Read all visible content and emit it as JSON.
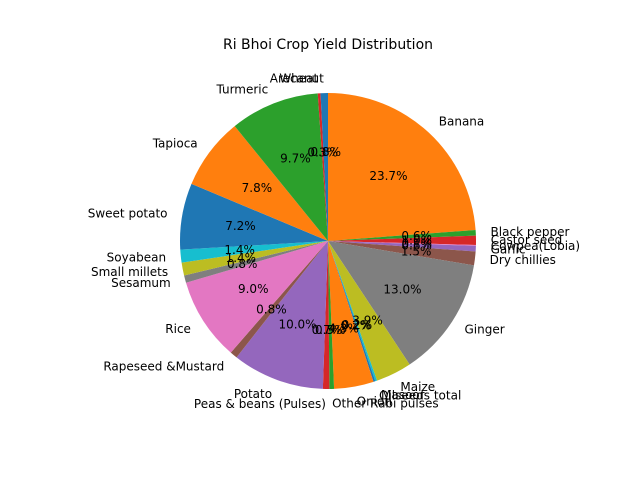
{
  "chart_data": {
    "type": "pie",
    "title": "Ri Bhoi Crop Yield Distribution",
    "start_angle_deg": 90,
    "direction": "clockwise",
    "legend": "none",
    "slices": [
      {
        "label": "Arecanut",
        "value": 0.8,
        "pct_label": "0.8%",
        "color": "#1f77b4"
      },
      {
        "label": "Wheat",
        "value": 0.3,
        "pct_label": "0.3%",
        "color": "#d62728"
      },
      {
        "label": "Turmeric",
        "value": 9.7,
        "pct_label": "9.7%",
        "color": "#2ca02c"
      },
      {
        "label": "Tapioca",
        "value": 7.8,
        "pct_label": "7.8%",
        "color": "#ff7f0e"
      },
      {
        "label": "Sweet potato",
        "value": 7.2,
        "pct_label": "7.2%",
        "color": "#1f77b4"
      },
      {
        "label": "Soyabean",
        "value": 1.4,
        "pct_label": "1.4%",
        "color": "#17becf"
      },
      {
        "label": "Small millets",
        "value": 1.4,
        "pct_label": "1.4%",
        "color": "#bcbd22"
      },
      {
        "label": "Sesamum",
        "value": 0.8,
        "pct_label": "0.8%",
        "color": "#7f7f7f"
      },
      {
        "label": "Rice",
        "value": 9.0,
        "pct_label": "9.0%",
        "color": "#e377c2"
      },
      {
        "label": "Rapeseed &Mustard",
        "value": 0.8,
        "pct_label": "0.8%",
        "color": "#8c564b"
      },
      {
        "label": "Potato",
        "value": 10.0,
        "pct_label": "10.0%",
        "color": "#9467bd"
      },
      {
        "label": "Peas & beans (Pulses)",
        "value": 0.7,
        "pct_label": "0.7%",
        "color": "#d62728"
      },
      {
        "label": "Other Rabi pulses",
        "value": 0.5,
        "pct_label": "0.5%",
        "color": "#2ca02c"
      },
      {
        "label": "Onion",
        "value": 4.3,
        "pct_label": "4.3%",
        "color": "#ff7f0e"
      },
      {
        "label": "Oilseeds total",
        "value": 0.2,
        "pct_label": "0.2%",
        "color": "#1f77b4"
      },
      {
        "label": "Masoor",
        "value": 0.2,
        "pct_label": "0.2%",
        "color": "#17becf"
      },
      {
        "label": "Maize",
        "value": 3.9,
        "pct_label": "3.9%",
        "color": "#bcbd22"
      },
      {
        "label": "Ginger",
        "value": 13.0,
        "pct_label": "13.0%",
        "color": "#7f7f7f"
      },
      {
        "label": "Dry chillies",
        "value": 1.5,
        "pct_label": "1.5%",
        "color": "#8c564b"
      },
      {
        "label": "Garlic",
        "value": 0.6,
        "pct_label": "0.6%",
        "color": "#9467bd"
      },
      {
        "label": "Cowpea(Lobia)",
        "value": 0.1,
        "pct_label": "0.1%",
        "color": "#e377c2"
      },
      {
        "label": "Castor seed",
        "value": 1.0,
        "pct_label": "1.0%",
        "color": "#d62728"
      },
      {
        "label": "Black pepper",
        "value": 0.6,
        "pct_label": "0.6%",
        "color": "#2ca02c"
      },
      {
        "label": "Banana",
        "value": 23.7,
        "pct_label": "23.7%",
        "color": "#ff7f0e"
      }
    ]
  }
}
